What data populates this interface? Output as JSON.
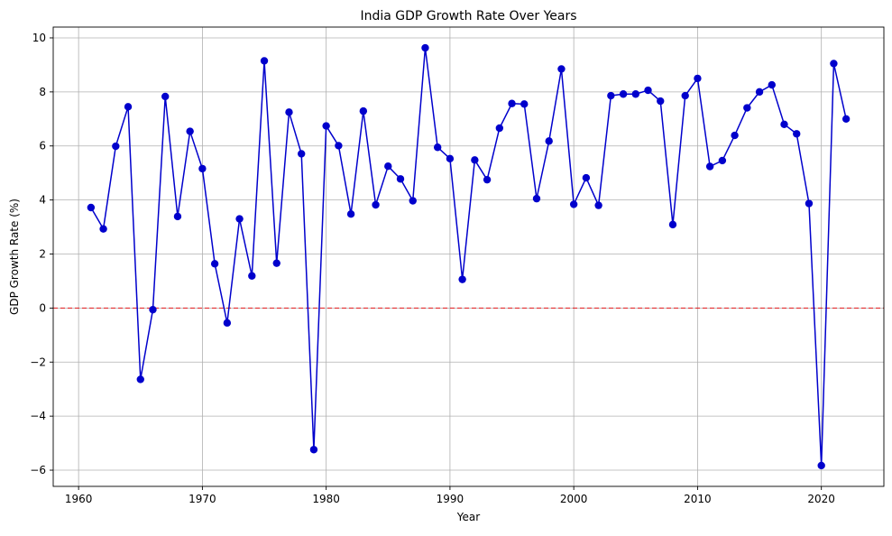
{
  "chart_data": {
    "type": "line",
    "title": "India GDP Growth Rate Over Years",
    "xlabel": "Year",
    "ylabel": "GDP Growth Rate (%)",
    "xlim": [
      1957.95,
      2025.05
    ],
    "ylim": [
      -6.6,
      10.4
    ],
    "xticks": [
      1960,
      1970,
      1980,
      1990,
      2000,
      2010,
      2020
    ],
    "yticks": [
      -6,
      -4,
      -2,
      0,
      2,
      4,
      6,
      8,
      10
    ],
    "xtick_labels": [
      "1960",
      "1970",
      "1980",
      "1990",
      "2000",
      "2010",
      "2020"
    ],
    "ytick_labels": [
      "−6",
      "−4",
      "−2",
      "0",
      "2",
      "4",
      "6",
      "8",
      "10"
    ],
    "grid": true,
    "reference_line": {
      "y": 0,
      "color": "#e31a1c",
      "style": "dashed"
    },
    "series": [
      {
        "color": "#0000cc",
        "marker": "circle",
        "x": [
          1961,
          1962,
          1963,
          1964,
          1965,
          1966,
          1967,
          1968,
          1969,
          1970,
          1971,
          1972,
          1973,
          1974,
          1975,
          1976,
          1977,
          1978,
          1979,
          1980,
          1981,
          1982,
          1983,
          1984,
          1985,
          1986,
          1987,
          1988,
          1989,
          1990,
          1991,
          1992,
          1993,
          1994,
          1995,
          1996,
          1997,
          1998,
          1999,
          2000,
          2001,
          2002,
          2003,
          2004,
          2005,
          2006,
          2007,
          2008,
          2009,
          2010,
          2011,
          2012,
          2013,
          2014,
          2015,
          2016,
          2017,
          2018,
          2019,
          2020,
          2021,
          2022
        ],
        "y": [
          3.72,
          2.93,
          5.99,
          7.45,
          -2.64,
          -0.06,
          7.83,
          3.39,
          6.54,
          5.16,
          1.64,
          -0.55,
          3.3,
          1.19,
          9.15,
          1.66,
          7.25,
          5.71,
          -5.24,
          6.74,
          6.01,
          3.48,
          7.29,
          3.82,
          5.25,
          4.78,
          3.97,
          9.63,
          5.95,
          5.53,
          1.06,
          5.48,
          4.75,
          6.66,
          7.57,
          7.55,
          4.05,
          6.18,
          8.85,
          3.84,
          4.82,
          3.8,
          7.86,
          7.92,
          7.92,
          8.06,
          7.66,
          3.09,
          7.86,
          8.5,
          5.24,
          5.46,
          6.39,
          7.41,
          8.0,
          8.26,
          6.8,
          6.45,
          3.87,
          -5.83,
          9.05,
          7.0
        ]
      }
    ]
  }
}
